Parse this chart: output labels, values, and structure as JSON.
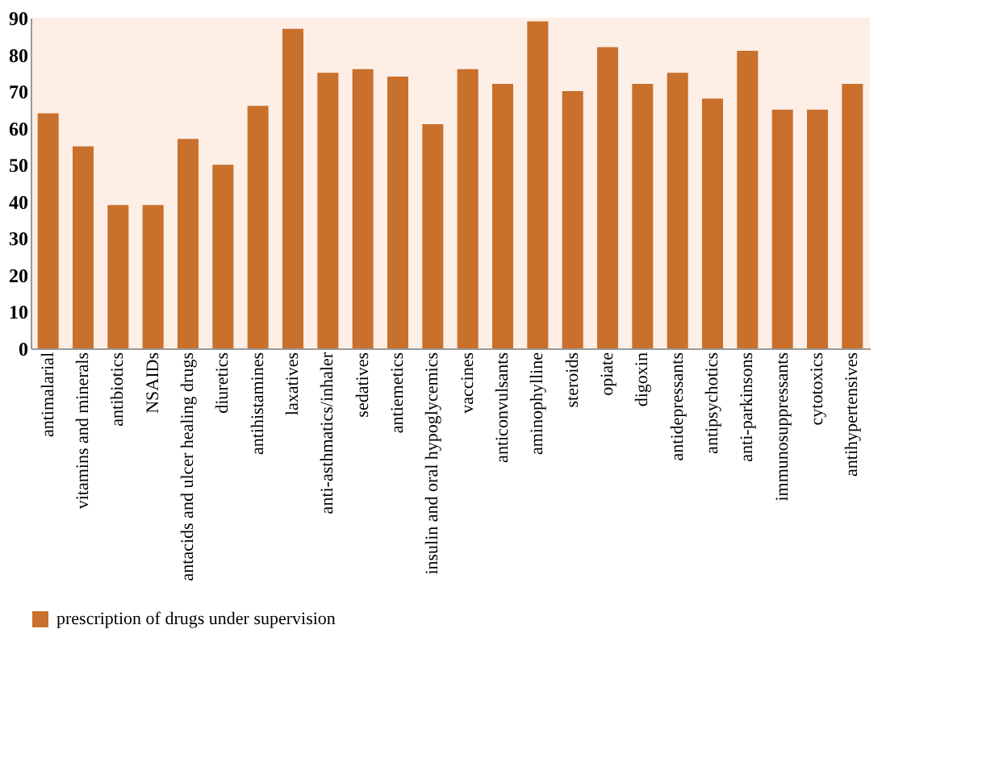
{
  "chart_data": {
    "type": "bar",
    "categories": [
      "antimalarial",
      "vitamins and minerals",
      "antibiotics",
      "NSAIDs",
      "antacids and ulcer healing drugs",
      "diuretics",
      "antihistamines",
      "laxatives",
      "anti-asthmatics/inhaler",
      "sedatives",
      "antiemetics",
      "insulin and oral hypoglycemics",
      "vaccines",
      "anticonvulsants",
      "aminophylline",
      "steroids",
      "opiate",
      "digoxin",
      "antidepressants",
      "antipsychotics",
      "anti-parkinsons",
      "immunosuppressants",
      "cytotoxics",
      "antihypertensives"
    ],
    "series": [
      {
        "name": "prescription of drugs under supervision",
        "color": "#c8702c",
        "values": [
          64,
          55,
          39,
          39,
          57,
          50,
          66,
          87,
          75,
          76,
          74,
          61,
          76,
          72,
          89,
          70,
          82,
          72,
          75,
          68,
          81,
          65,
          65,
          72
        ]
      }
    ],
    "ylim": [
      0,
      90
    ],
    "yticks": [
      0,
      10,
      20,
      30,
      40,
      50,
      60,
      70,
      80,
      90
    ],
    "grid": false,
    "legend": "bottom"
  }
}
